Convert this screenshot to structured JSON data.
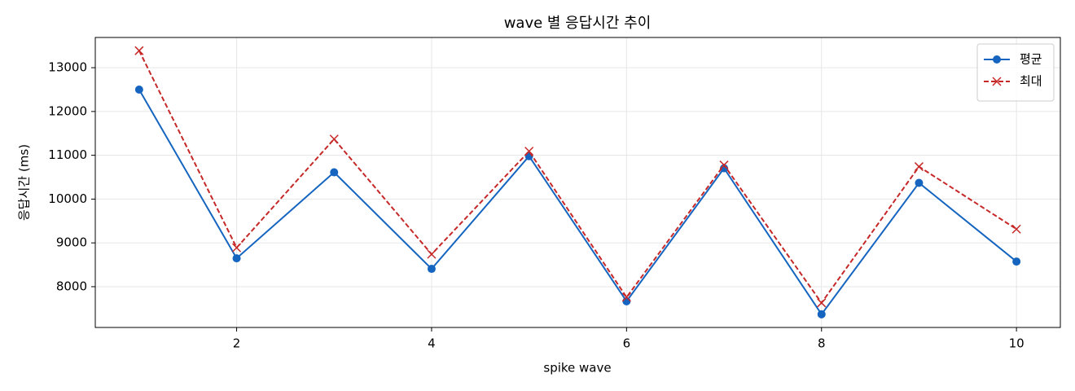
{
  "chart_data": {
    "type": "line",
    "title": "wave 별 응답시간 추이",
    "xlabel": "spike wave",
    "ylabel": "응답시간 (ms)",
    "x": [
      1,
      2,
      3,
      4,
      5,
      6,
      7,
      8,
      9,
      10
    ],
    "series": [
      {
        "name": "평균",
        "color": "#1565c0",
        "marker": "o",
        "dash": false,
        "values": [
          12500,
          8648,
          10611,
          8407,
          10981,
          7667,
          10704,
          7370,
          10370,
          8574
        ]
      },
      {
        "name": "최대",
        "color": "#c62828",
        "marker": "x",
        "dash": true,
        "values": [
          13389,
          8889,
          11370,
          8741,
          11093,
          7759,
          10778,
          7630,
          10741,
          9315
        ]
      }
    ],
    "xlim": [
      0.55,
      10.45
    ],
    "xticks": [
      2,
      4,
      6,
      8,
      10
    ],
    "ylim": [
      7069,
      13690
    ],
    "yticks": [
      8000,
      9000,
      10000,
      11000,
      12000,
      13000
    ],
    "grid": true,
    "legend": "upper right"
  }
}
